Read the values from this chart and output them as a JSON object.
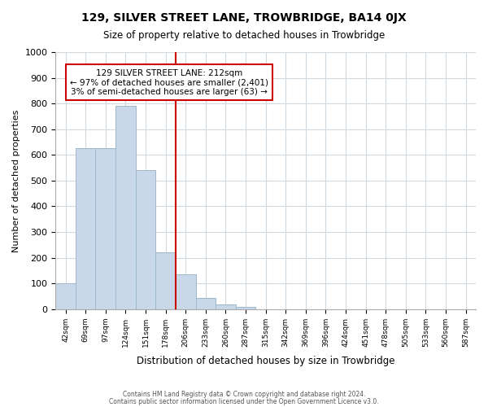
{
  "title": "129, SILVER STREET LANE, TROWBRIDGE, BA14 0JX",
  "subtitle": "Size of property relative to detached houses in Trowbridge",
  "xlabel": "Distribution of detached houses by size in Trowbridge",
  "ylabel": "Number of detached properties",
  "footer_line1": "Contains HM Land Registry data © Crown copyright and database right 2024.",
  "footer_line2": "Contains public sector information licensed under the Open Government Licence v3.0.",
  "bin_labels": [
    "42sqm",
    "69sqm",
    "97sqm",
    "124sqm",
    "151sqm",
    "178sqm",
    "206sqm",
    "233sqm",
    "260sqm",
    "287sqm",
    "315sqm",
    "342sqm",
    "369sqm",
    "396sqm",
    "424sqm",
    "451sqm",
    "478sqm",
    "505sqm",
    "533sqm",
    "560sqm",
    "587sqm"
  ],
  "bar_heights": [
    100,
    625,
    625,
    790,
    540,
    220,
    135,
    45,
    18,
    10,
    0,
    0,
    0,
    0,
    0,
    0,
    0,
    0,
    0,
    0,
    0
  ],
  "bar_color": "#c8d8e8",
  "bar_edge_color": "#a0b8cc",
  "property_line_label_idx": 6,
  "property_line_color": "#cc0000",
  "annotation_box_edge_color": "#cc0000",
  "annotation_line1": "129 SILVER STREET LANE: 212sqm",
  "annotation_line2": "← 97% of detached houses are smaller (2,401)",
  "annotation_line3": "3% of semi-detached houses are larger (63) →",
  "ylim": [
    0,
    1000
  ],
  "yticks": [
    0,
    100,
    200,
    300,
    400,
    500,
    600,
    700,
    800,
    900,
    1000
  ],
  "background_color": "#ffffff",
  "grid_color": "#d0d8e0"
}
